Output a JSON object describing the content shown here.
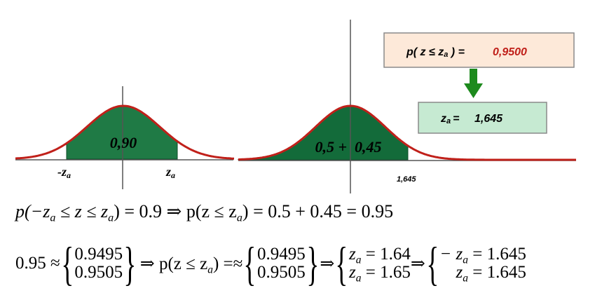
{
  "colors": {
    "curve": "#c0201a",
    "fill": "#1f7a45",
    "fill_alt": "#136b3a",
    "box1_bg": "#fde9d9",
    "box2_bg": "#c6ead2",
    "arrow": "#1d8a1d",
    "red_text": "#c0201a"
  },
  "left_plot": {
    "area_label": "0,90",
    "neg_z_label": "-z",
    "neg_z_sub": "a",
    "z_label": "z",
    "z_sub": "a"
  },
  "right_plot": {
    "area_label": "0,5 +  0,45",
    "tick_label": "1,645"
  },
  "box_prob": {
    "prefix": "p( z ≤ z",
    "sub": "a",
    "suffix": " ) =",
    "value": "0,9500"
  },
  "box_z": {
    "label": "z",
    "sub": "a",
    "eq": "=",
    "value": "1,645"
  },
  "formula1": {
    "p1": "p(−z",
    "s1": "a",
    "p2": " ≤ z ≤ z",
    "s2": "a",
    "p3": ") = 0.9 ⇒ p(z ≤ z",
    "s3": "a",
    "p4": ") = 0.5 + 0.45 = 0.95"
  },
  "formula2": {
    "lead": "0.95 ≈",
    "set1_a": "0.9495",
    "set1_b": "0.9505",
    "mid_a": "⇒ p(z ≤ z",
    "mid_s": "a",
    "mid_b": ") =≈",
    "set2_a": "0.9495",
    "set2_b": "0.9505",
    "arrow": "⇒",
    "za1": "z",
    "za1_s": "a",
    "za1_v": " = 1.64",
    "za2": "z",
    "za2_s": "a",
    "za2_v": " = 1.65",
    "arrow2": "⇒",
    "r1": "− z",
    "r1_s": "a",
    "r1_v": " = 1.645",
    "r2": "z",
    "r2_s": "a",
    "r2_v": " = 1.645"
  }
}
